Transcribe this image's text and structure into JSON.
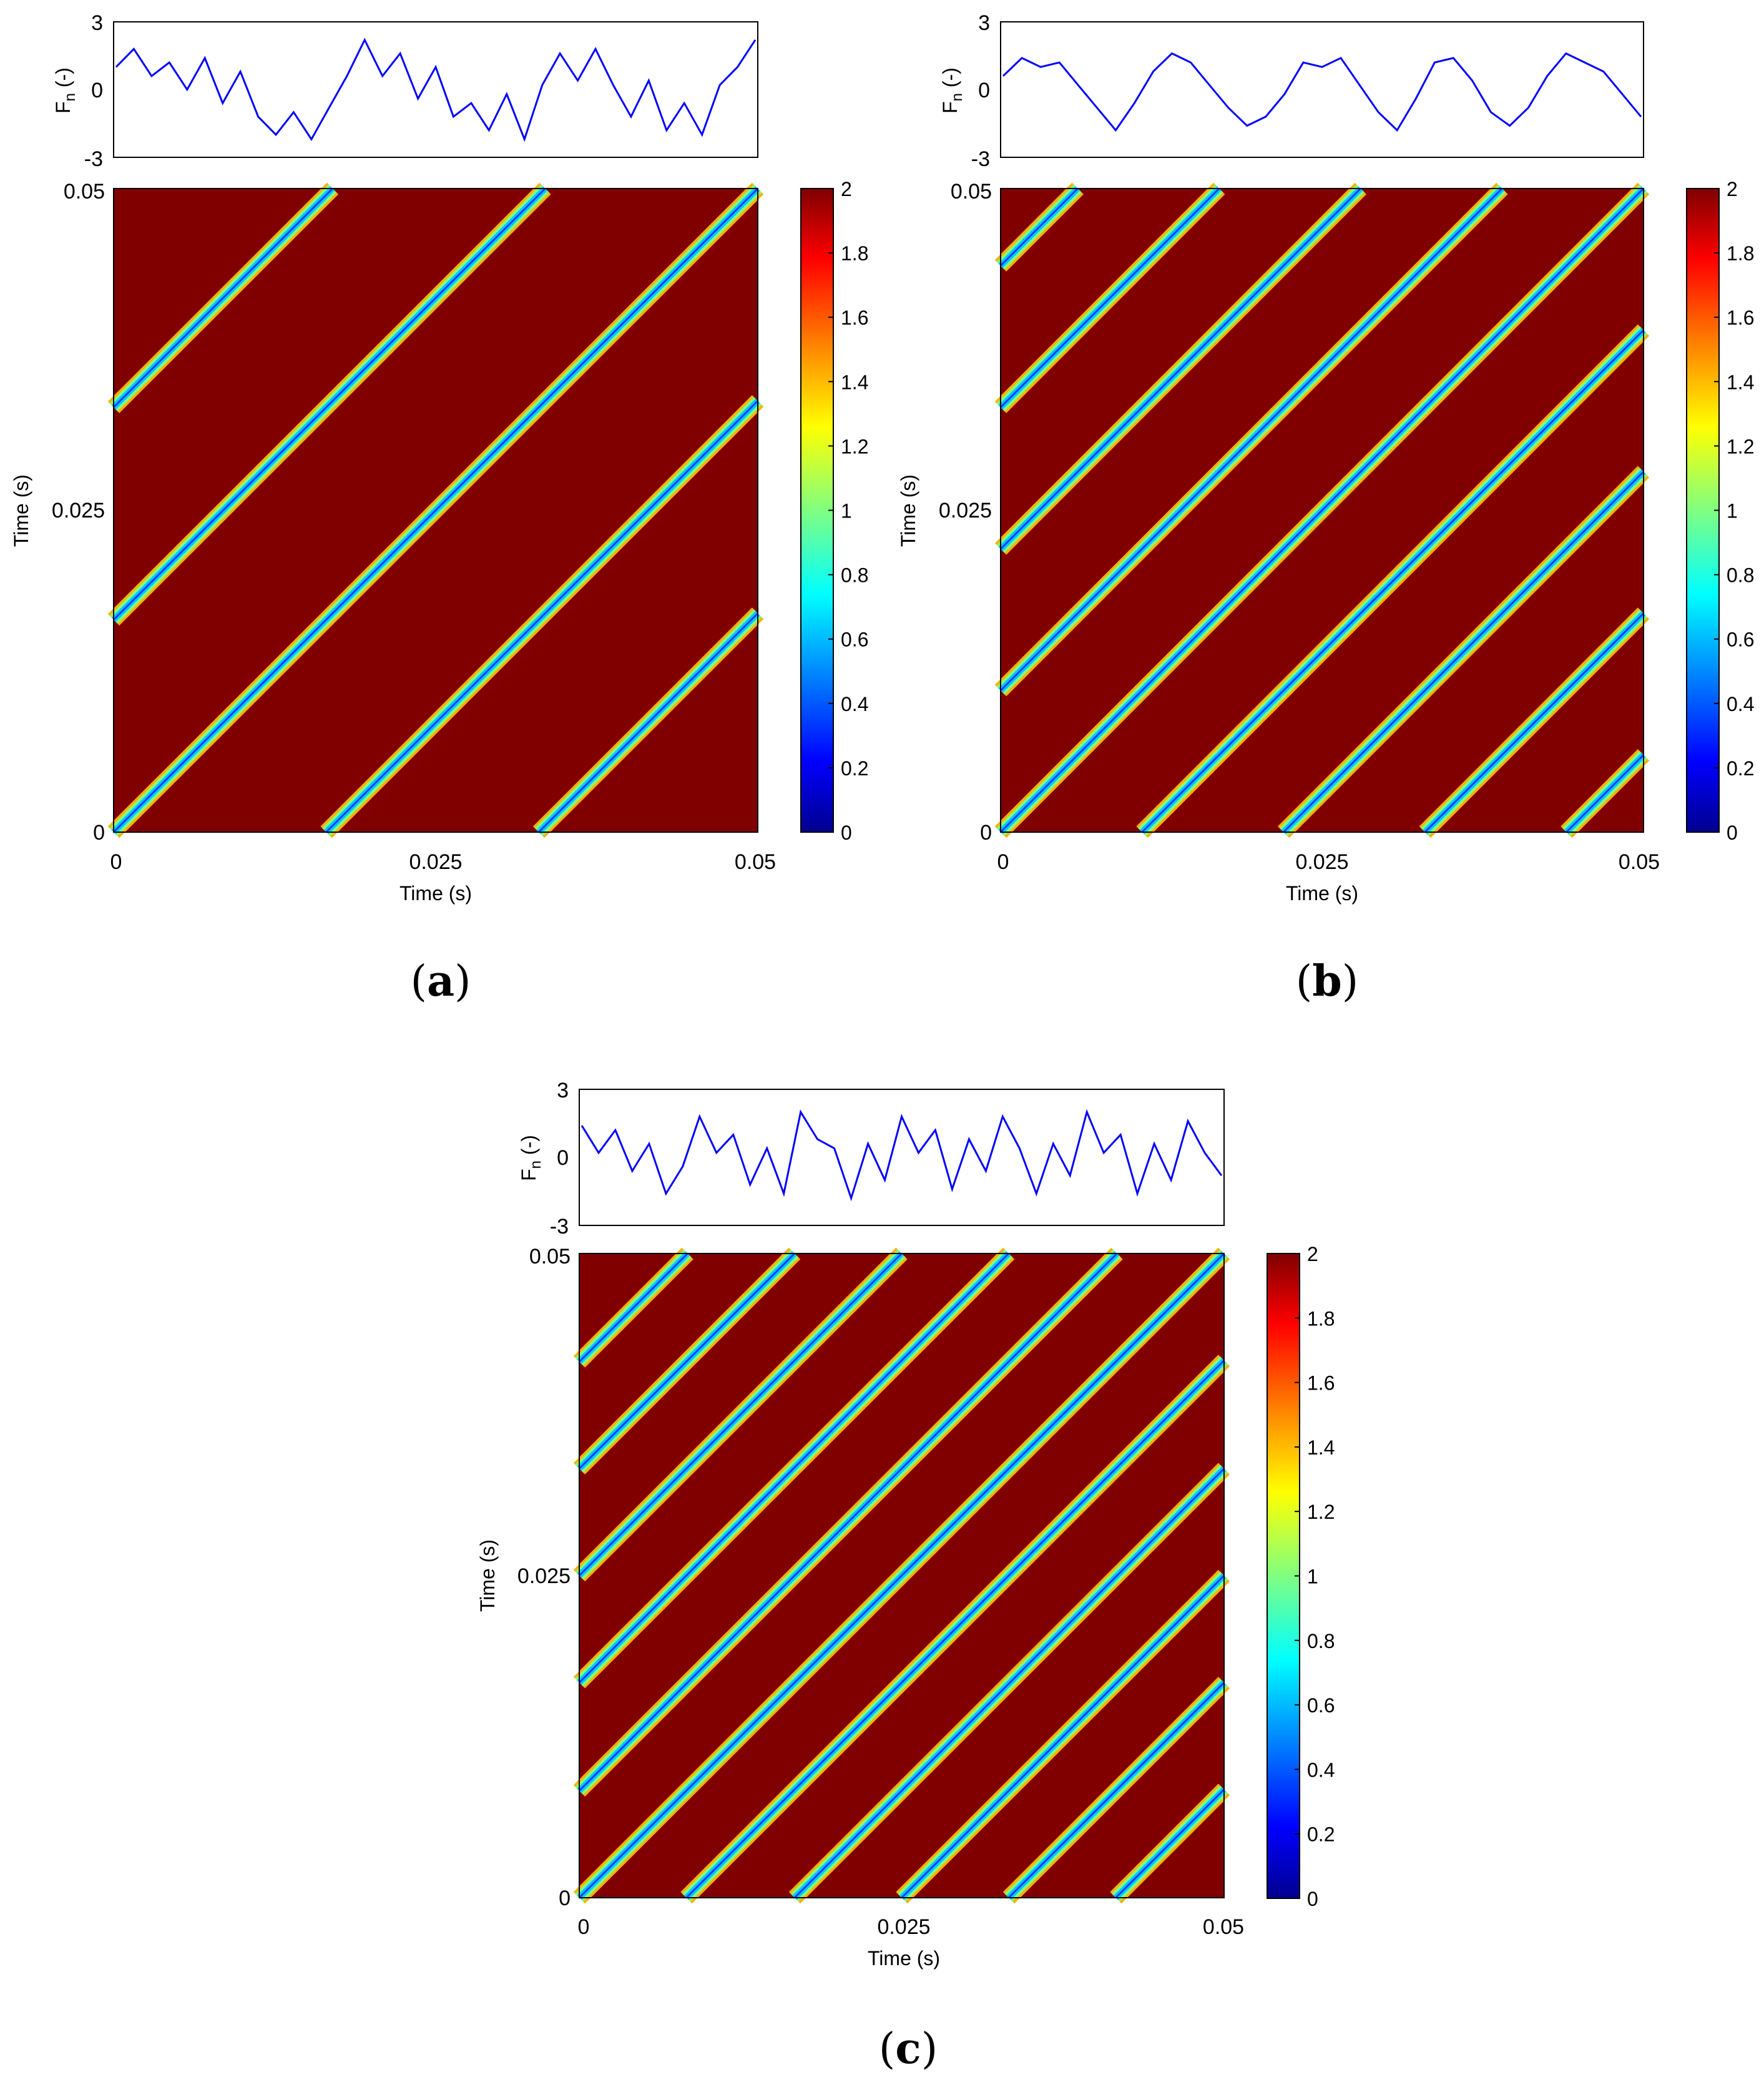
{
  "figure": {
    "panels": [
      {
        "id": "a",
        "caption_letter": "a"
      },
      {
        "id": "b",
        "caption_letter": "b"
      },
      {
        "id": "c",
        "caption_letter": "c"
      }
    ]
  },
  "common": {
    "signal_ylabel_main": "F",
    "signal_ylabel_sub": "n",
    "signal_ylabel_unit": " (-)",
    "signal_yticks": [
      "-3",
      "0",
      "3"
    ],
    "rp_xlabel": "Time (s)",
    "rp_ylabel": "Time (s)",
    "rp_xticks": [
      "0",
      "0.025",
      "0.05"
    ],
    "rp_yticks": [
      "0",
      "0.025",
      "0.05"
    ],
    "colorbar_ticks": [
      "0",
      "0.2",
      "0.4",
      "0.6",
      "0.8",
      "1",
      "1.2",
      "1.4",
      "1.6",
      "1.8",
      "2"
    ],
    "colors": {
      "signal_line": "#0000ff",
      "jet_scale": [
        "#00008f",
        "#0000ff",
        "#0080ff",
        "#00ffff",
        "#80ff80",
        "#ffff00",
        "#ff8000",
        "#ff0000",
        "#800000"
      ]
    }
  },
  "chart_data": [
    {
      "panel": "a",
      "type": "heatmap",
      "description_kind": "recurrence plot with signal trace above",
      "signal": {
        "type": "line",
        "x_range": [
          0,
          0.05
        ],
        "ylim": [
          -3,
          3
        ],
        "series": [
          {
            "values": [
              1.0,
              1.8,
              0.6,
              1.2,
              0.0,
              1.4,
              -0.6,
              0.8,
              -1.2,
              -2.0,
              -1.0,
              -2.2,
              -0.8,
              0.6,
              2.2,
              0.6,
              1.6,
              -0.4,
              1.0,
              -1.2,
              -0.6,
              -1.8,
              -0.2,
              -2.2,
              0.2,
              1.6,
              0.4,
              1.8,
              0.2,
              -1.2,
              0.4,
              -1.8,
              -0.6,
              -2.0,
              0.2,
              1.0,
              2.2
            ]
          }
        ]
      },
      "recurrence": {
        "x_range": [
          0,
          0.05
        ],
        "y_range": [
          0,
          0.05
        ],
        "clim": [
          0,
          2
        ],
        "diagonal_line_offsets_s": [
          -0.033,
          -0.0165,
          0,
          0.0165,
          0.033
        ],
        "background_value": 2,
        "line_value": 0.6
      }
    },
    {
      "panel": "b",
      "type": "heatmap",
      "description_kind": "recurrence plot with signal trace above",
      "signal": {
        "type": "line",
        "x_range": [
          0,
          0.05
        ],
        "ylim": [
          -3,
          3
        ],
        "series": [
          {
            "values": [
              0.6,
              1.4,
              1.0,
              1.2,
              0.2,
              -0.8,
              -1.8,
              -0.6,
              0.8,
              1.6,
              1.2,
              0.2,
              -0.8,
              -1.6,
              -1.2,
              -0.2,
              1.2,
              1.0,
              1.4,
              0.2,
              -1.0,
              -1.8,
              -0.4,
              1.2,
              1.4,
              0.4,
              -1.0,
              -1.6,
              -0.8,
              0.6,
              1.6,
              1.2,
              0.8,
              -0.2,
              -1.2
            ]
          }
        ]
      },
      "recurrence": {
        "x_range": [
          0,
          0.05
        ],
        "y_range": [
          0,
          0.05
        ],
        "clim": [
          0,
          2
        ],
        "diagonal_line_offsets_s": [
          -0.044,
          -0.033,
          -0.022,
          -0.011,
          0,
          0.011,
          0.022,
          0.033,
          0.044
        ],
        "background_value": 2,
        "line_value": 0.6
      }
    },
    {
      "panel": "c",
      "type": "heatmap",
      "description_kind": "recurrence plot with signal trace above",
      "signal": {
        "type": "line",
        "x_range": [
          0,
          0.05
        ],
        "ylim": [
          -3,
          3
        ],
        "series": [
          {
            "values": [
              1.4,
              0.2,
              1.2,
              -0.6,
              0.6,
              -1.6,
              -0.4,
              1.8,
              0.2,
              1.0,
              -1.2,
              0.4,
              -1.6,
              2.0,
              0.8,
              0.4,
              -1.8,
              0.6,
              -1.0,
              1.8,
              0.2,
              1.2,
              -1.4,
              0.8,
              -0.6,
              1.8,
              0.4,
              -1.6,
              0.6,
              -0.8,
              2.0,
              0.2,
              1.0,
              -1.6,
              0.6,
              -1.0,
              1.6,
              0.2,
              -0.8
            ]
          }
        ]
      },
      "recurrence": {
        "x_range": [
          0,
          0.05
        ],
        "y_range": [
          0,
          0.05
        ],
        "clim": [
          0,
          2
        ],
        "diagonal_line_offsets_s": [
          -0.0416,
          -0.0333,
          -0.025,
          -0.0167,
          -0.0083,
          0,
          0.0083,
          0.0167,
          0.025,
          0.0333,
          0.0416
        ],
        "background_value": 2,
        "line_value": 0.6
      }
    }
  ]
}
